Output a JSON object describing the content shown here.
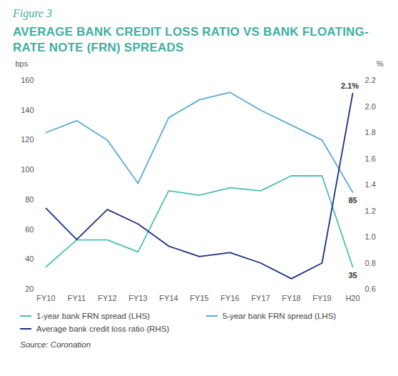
{
  "chart_data": {
    "type": "line",
    "figure": "Figure 3",
    "title": "AVERAGE BANK CREDIT LOSS RATIO VS BANK FLOATING-RATE NOTE (FRN) SPREADS",
    "source": "Source: Coronation",
    "y_label": "bps",
    "y2_label": "%",
    "categories": [
      "FY10",
      "FY11",
      "FY12",
      "FY13",
      "FY14",
      "FY15",
      "FY16",
      "FY17",
      "FY18",
      "FY19",
      "H20"
    ],
    "series": [
      {
        "name": "1-year bank FRN spread (LHS)",
        "color": "#4dbfb0",
        "values": [
          35,
          53,
          53,
          45,
          86,
          83,
          88,
          86,
          96,
          96,
          35
        ],
        "value_labels": [
          null,
          null,
          null,
          null,
          null,
          null,
          null,
          null,
          null,
          null,
          "35"
        ]
      },
      {
        "name": "5-year bank FRN spread (LHS)",
        "color": "#5aa9d6",
        "values": [
          125,
          133,
          120,
          91,
          135,
          147,
          152,
          140,
          130,
          120,
          85
        ],
        "value_labels": [
          null,
          null,
          null,
          null,
          null,
          null,
          null,
          null,
          null,
          null,
          "85"
        ]
      },
      {
        "name": "Average bank credit loss ratio (RHS)",
        "color": "#1c2f85",
        "axis": "y2",
        "values": [
          1.22,
          0.98,
          1.21,
          1.1,
          0.93,
          0.85,
          0.88,
          0.8,
          0.68,
          0.8,
          2.1
        ],
        "value_labels": [
          null,
          null,
          null,
          null,
          null,
          null,
          null,
          null,
          null,
          null,
          "2.1%"
        ]
      }
    ],
    "ylim": [
      20,
      160
    ],
    "yticks": [
      20,
      40,
      60,
      80,
      100,
      120,
      140,
      160
    ],
    "y2lim": [
      0.6,
      2.2
    ],
    "y2ticks": [
      0.6,
      0.8,
      {
        "value": 1,
        "label": "1.0"
      },
      1.2,
      1.4,
      1.6,
      1.8,
      {
        "value": 2,
        "label": "2.0"
      },
      2.2
    ],
    "grid": false,
    "data_labels": true,
    "legend": "bottom"
  }
}
